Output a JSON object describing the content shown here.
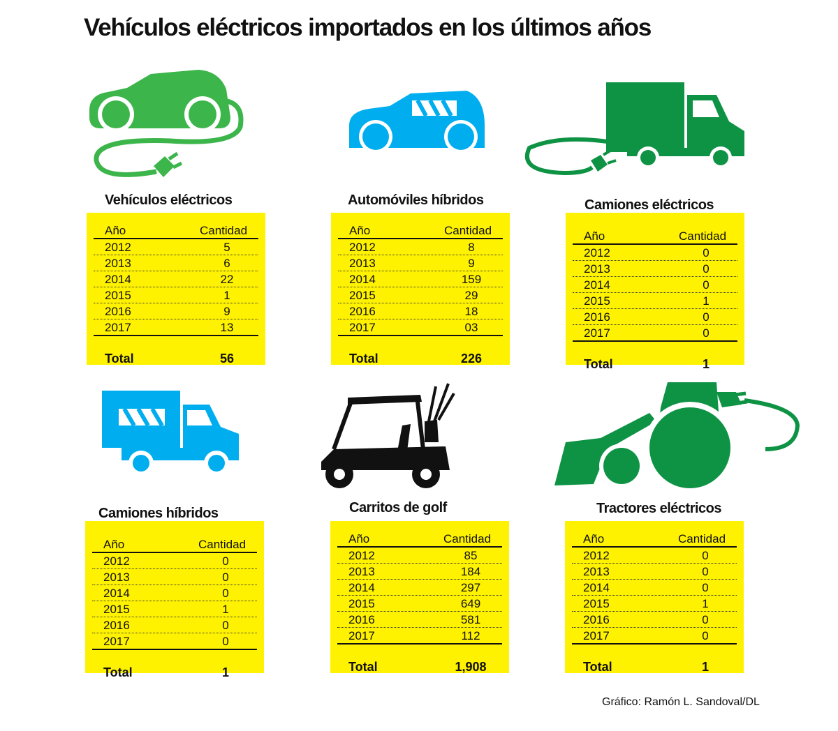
{
  "title": "Vehículos eléctricos importados en los últimos años",
  "credit": "Gráfico: Ramón L. Sandoval/DL",
  "colors": {
    "light_green": "#3cb54a",
    "blue": "#00aeef",
    "dark_green": "#0e9345",
    "yellow": "#fff200",
    "black": "#111111"
  },
  "icons": [
    "electric-car-plug-icon",
    "hybrid-car-icon",
    "electric-truck-plug-icon",
    "hybrid-truck-icon",
    "golf-cart-icon",
    "electric-tractor-plug-icon"
  ],
  "chart_data": [
    {
      "type": "table",
      "title": "Vehículos eléctricos",
      "columns": [
        "Año",
        "Cantidad"
      ],
      "rows": [
        [
          "2012",
          "5"
        ],
        [
          "2013",
          "6"
        ],
        [
          "2014",
          "22"
        ],
        [
          "2015",
          "1"
        ],
        [
          "2016",
          "9"
        ],
        [
          "2017",
          "13"
        ]
      ],
      "total_label": "Total",
      "total": "56"
    },
    {
      "type": "table",
      "title": "Automóviles híbridos",
      "columns": [
        "Año",
        "Cantidad"
      ],
      "rows": [
        [
          "2012",
          "8"
        ],
        [
          "2013",
          "9"
        ],
        [
          "2014",
          "159"
        ],
        [
          "2015",
          "29"
        ],
        [
          "2016",
          "18"
        ],
        [
          "2017",
          "03"
        ]
      ],
      "total_label": "Total",
      "total": "226"
    },
    {
      "type": "table",
      "title": "Camiones eléctricos",
      "columns": [
        "Año",
        "Cantidad"
      ],
      "rows": [
        [
          "2012",
          "0"
        ],
        [
          "2013",
          "0"
        ],
        [
          "2014",
          "0"
        ],
        [
          "2015",
          "1"
        ],
        [
          "2016",
          "0"
        ],
        [
          "2017",
          "0"
        ]
      ],
      "total_label": "Total",
      "total": "1"
    },
    {
      "type": "table",
      "title": "Camiones híbridos",
      "columns": [
        "Año",
        "Cantidad"
      ],
      "rows": [
        [
          "2012",
          "0"
        ],
        [
          "2013",
          "0"
        ],
        [
          "2014",
          "0"
        ],
        [
          "2015",
          "1"
        ],
        [
          "2016",
          "0"
        ],
        [
          "2017",
          "0"
        ]
      ],
      "total_label": "Total",
      "total": "1"
    },
    {
      "type": "table",
      "title": "Carritos de golf",
      "columns": [
        "Año",
        "Cantidad"
      ],
      "rows": [
        [
          "2012",
          "85"
        ],
        [
          "2013",
          "184"
        ],
        [
          "2014",
          "297"
        ],
        [
          "2015",
          "649"
        ],
        [
          "2016",
          "581"
        ],
        [
          "2017",
          "112"
        ]
      ],
      "total_label": "Total",
      "total": "1,908"
    },
    {
      "type": "table",
      "title": "Tractores eléctricos",
      "columns": [
        "Año",
        "Cantidad"
      ],
      "rows": [
        [
          "2012",
          "0"
        ],
        [
          "2013",
          "0"
        ],
        [
          "2014",
          "0"
        ],
        [
          "2015",
          "1"
        ],
        [
          "2016",
          "0"
        ],
        [
          "2017",
          "0"
        ]
      ],
      "total_label": "Total",
      "total": "1"
    }
  ]
}
